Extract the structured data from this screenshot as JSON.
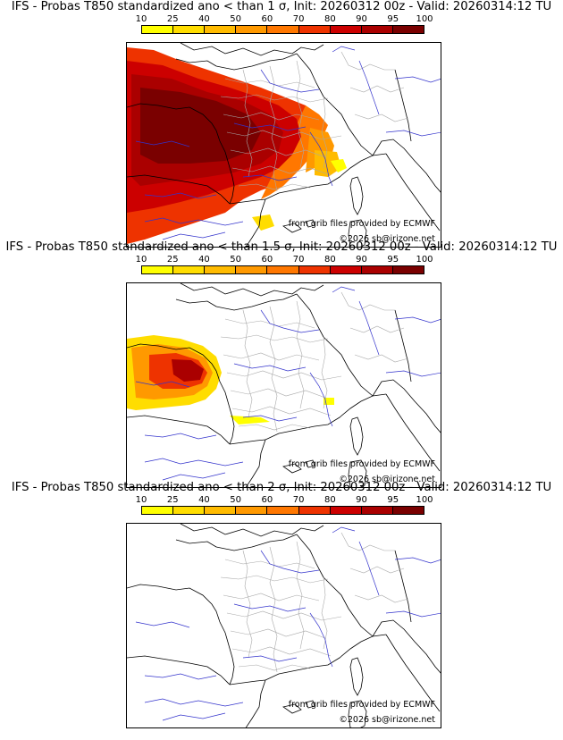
{
  "colorbar": {
    "ticks": [
      "10",
      "25",
      "40",
      "50",
      "60",
      "70",
      "80",
      "90",
      "95",
      "100"
    ],
    "colors": [
      "#ffff00",
      "#ffdd00",
      "#ffbb00",
      "#ff9900",
      "#ff7700",
      "#ee3300",
      "#cc0000",
      "#aa0000",
      "#7a0000"
    ]
  },
  "colors": {
    "land_border": "#000000",
    "admin": "#a8a8a8",
    "river": "#3333cc"
  },
  "panels": [
    {
      "title": "IFS - Probas T850  standardized ano < than 1 σ, Init: 20260312 00z - Valid: 20260314:12 TU",
      "credit": "from grib files provided by ECMWF",
      "copyright": "©2026 sb@irizone.net"
    },
    {
      "title": "IFS - Probas T850  standardized ano < than 1.5 σ, Init: 20260312 00z - Valid: 20260314:12 TU",
      "credit": "from grib files provided by ECMWF",
      "copyright": "©2026 sb@irizone.net"
    },
    {
      "title": "IFS - Probas T850  standardized ano < than 2 σ, Init: 20260312 00z - Valid: 20260314:12 TU",
      "credit": "from grib files provided by ECMWF",
      "copyright": "©2026 sb@irizone.net"
    }
  ]
}
